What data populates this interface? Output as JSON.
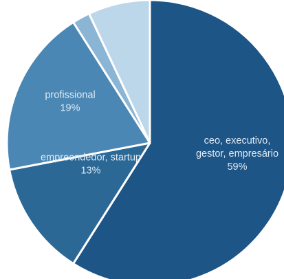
{
  "chart_data": {
    "type": "pie",
    "title": "",
    "slices": [
      {
        "category": "ceo, executivo, gestor, empresário",
        "label_lines": [
          "ceo, executivo,",
          "gestor, empresário"
        ],
        "percent_label": "59%",
        "value": 59,
        "color": "#1d5587"
      },
      {
        "category": "empreendedor, startup",
        "label_lines": [
          "empreendedor, startup"
        ],
        "percent_label": "13%",
        "value": 13,
        "color": "#2b6896"
      },
      {
        "category": "profissional",
        "label_lines": [
          "profissional"
        ],
        "percent_label": "19%",
        "value": 19,
        "color": "#4a87b4"
      },
      {
        "category": "",
        "label_lines": [],
        "percent_label": "",
        "value": 2,
        "color": "#8bb5d4"
      },
      {
        "category": "",
        "label_lines": [],
        "percent_label": "",
        "value": 7,
        "color": "#bdd7ea"
      }
    ]
  }
}
